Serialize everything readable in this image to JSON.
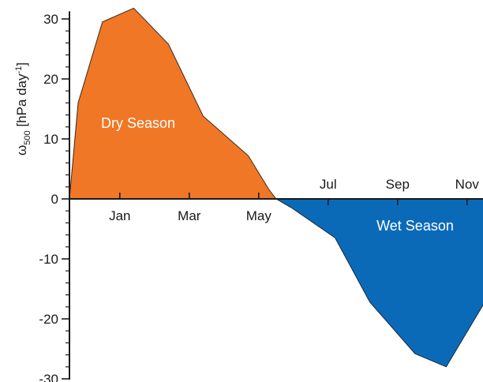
{
  "chart_data": {
    "type": "area",
    "title": "",
    "xlabel": "",
    "ylabel": {
      "symbol": "ω",
      "subscript": "500",
      "unit_prefix": " [hPa day",
      "superscript": "-1",
      "unit_suffix": "]"
    },
    "ylim": [
      -30,
      31
    ],
    "y_ticks": [
      30,
      20,
      10,
      0,
      -10,
      -20,
      -30
    ],
    "x_tick_labels_below": [
      "Jan",
      "Mar",
      "May"
    ],
    "x_tick_labels_above": [
      "Jul",
      "Sep",
      "Nov"
    ],
    "x_ticks": [
      1,
      3,
      5,
      7,
      9,
      11
    ],
    "xlim": [
      -0.45,
      11.6
    ],
    "series": [
      {
        "values": [
          [
            -0.45,
            0
          ],
          [
            -0.2,
            16
          ],
          [
            0.5,
            29.5
          ],
          [
            1.4,
            31.8
          ],
          [
            2.4,
            25.8
          ],
          [
            3.4,
            13.8
          ],
          [
            4.7,
            7.2
          ],
          [
            5.3,
            1.5
          ],
          [
            5.5,
            0
          ],
          [
            5.95,
            -1.5
          ],
          [
            7.2,
            -6.5
          ],
          [
            8.2,
            -17.2
          ],
          [
            9.5,
            -25.8
          ],
          [
            10.4,
            -28
          ],
          [
            11.5,
            -17.3
          ],
          [
            11.8,
            0
          ]
        ]
      }
    ],
    "annotations": [
      "Dry Season",
      "Wet Season"
    ],
    "colors": {
      "dry": "#f07726",
      "wet": "#0b6ab8",
      "axis": "#1a1a1a"
    }
  }
}
